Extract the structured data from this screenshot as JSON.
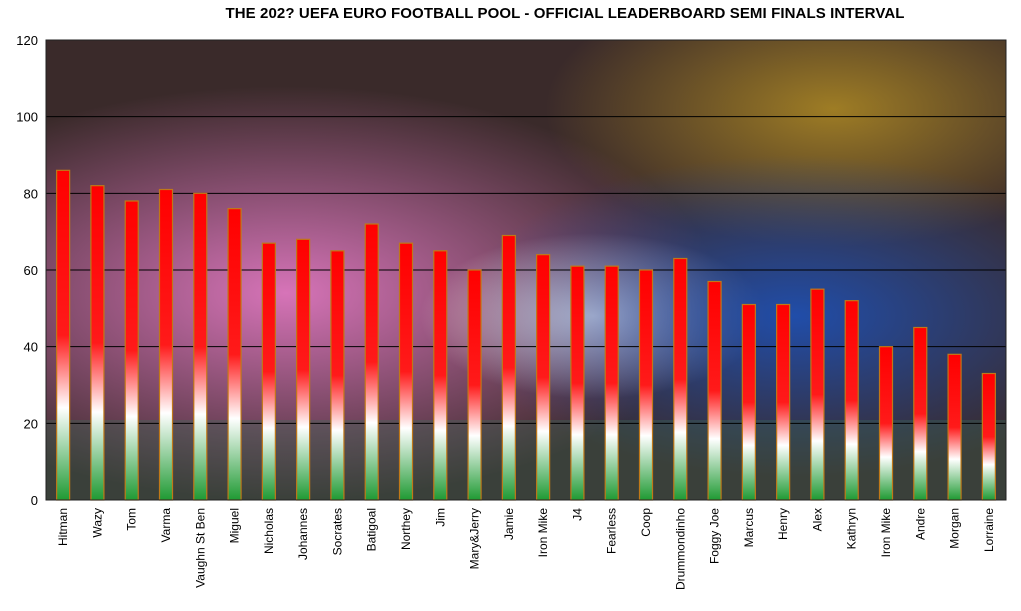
{
  "chart_data": {
    "type": "bar",
    "title": "THE 202? UEFA EURO FOOTBALL POOL - OFFICIAL LEADERBOARD SEMI FINALS INTERVAL",
    "xlabel": "",
    "ylabel": "",
    "ylim": [
      0,
      120
    ],
    "yticks": [
      "0",
      "20",
      "40",
      "60",
      "80",
      "100",
      "120"
    ],
    "grid": true,
    "legend": "none",
    "categories": [
      "Hitman",
      "Wazy",
      "Tom",
      "Varma",
      "Vaughn St Ben",
      "Miguel",
      "Nicholas",
      "Johannes",
      "Socrates",
      "Batigoal",
      "Northey",
      "Jim",
      "Mary&Jerry",
      "Jamie",
      "Iron Mike",
      "J4",
      "Fearless",
      "Coop",
      "Drummondinho",
      "Foggy Joe",
      "Marcus",
      "Henry",
      "Alex",
      "Kathryn",
      "Iron Mike",
      "Andre",
      "Morgan",
      "Lorraine"
    ],
    "values": [
      86,
      82,
      78,
      81,
      80,
      76,
      67,
      68,
      65,
      72,
      67,
      65,
      60,
      69,
      64,
      61,
      61,
      60,
      63,
      57,
      51,
      51,
      55,
      52,
      40,
      45,
      38,
      33
    ],
    "bar_fill_colors": [
      "#ff0000",
      "#ffffff",
      "#1f9a33"
    ],
    "background": "photo"
  }
}
